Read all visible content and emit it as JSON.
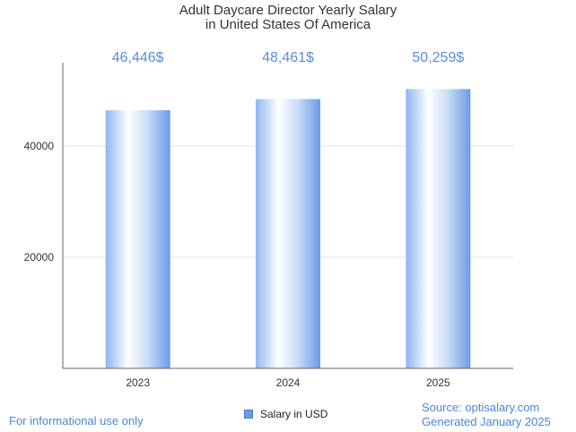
{
  "chart_data": {
    "type": "bar",
    "title_line1": "Adult Daycare Director Yearly Salary",
    "title_line2": "in United States Of America",
    "categories": [
      "2023",
      "2024",
      "2025"
    ],
    "series": [
      {
        "name": "Salary in USD",
        "values": [
          46446,
          48461,
          50259
        ]
      }
    ],
    "data_labels": [
      "46,446$",
      "48,461$",
      "50,259$"
    ],
    "yticks": [
      20000,
      40000
    ],
    "ylim": [
      0,
      55000
    ],
    "grid": true,
    "legend_position": "bottom-center",
    "colors": {
      "bar_light": "#ffffff",
      "bar_mid": "#b8d2f5",
      "bar_dark": "#6b9ae6",
      "value_label": "#5b8ed6"
    }
  },
  "footer": {
    "left": "For informational use only",
    "source": "Source: optisalary.com",
    "generated": "Generated January 2025"
  }
}
